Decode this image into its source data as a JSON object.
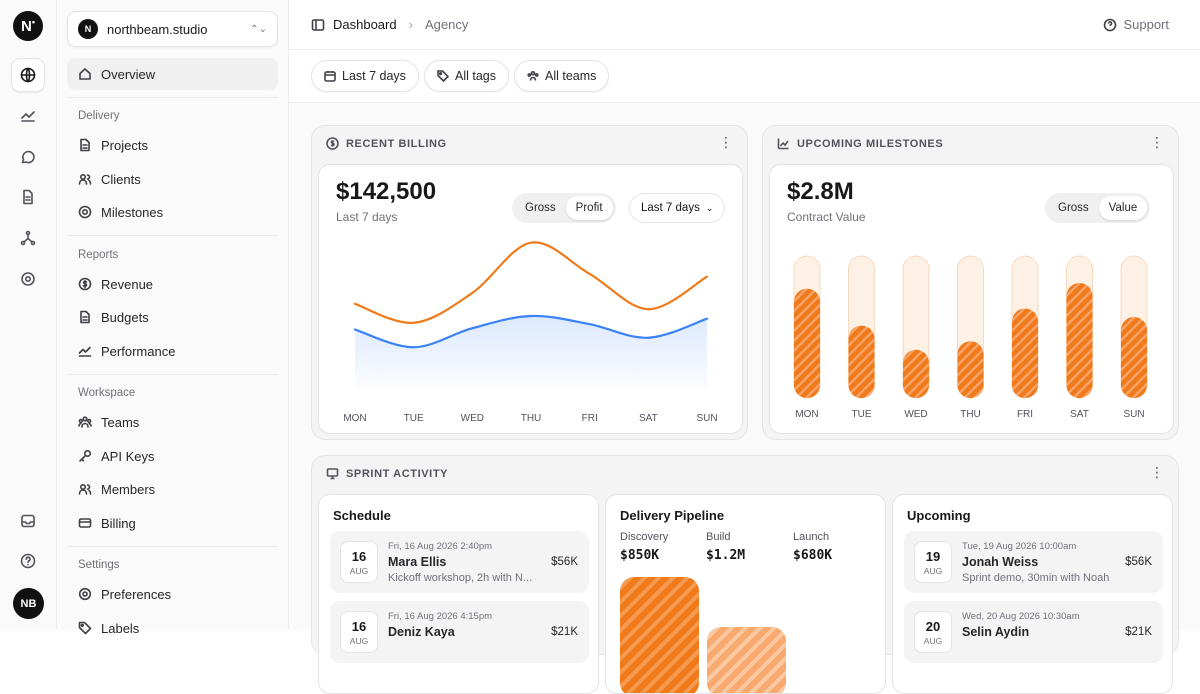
{
  "rail": {
    "logo": "N",
    "icons": [
      "globe-icon",
      "chart-line-icon",
      "chat-icon",
      "document-icon",
      "network-icon",
      "settings-icon"
    ],
    "bottom_icons": [
      "inbox-icon",
      "help-icon"
    ],
    "avatar": "NB"
  },
  "workspace": {
    "badge": "N",
    "name": "northbeam.studio"
  },
  "nav": {
    "overview": "Overview",
    "delivery_title": "Delivery",
    "delivery": [
      "Projects",
      "Clients",
      "Milestones"
    ],
    "reports_title": "Reports",
    "reports": [
      "Revenue",
      "Budgets",
      "Performance"
    ],
    "workspace_title": "Workspace",
    "workspace": [
      "Teams",
      "API Keys",
      "Members",
      "Billing"
    ],
    "settings_title": "Settings",
    "settings": [
      "Preferences",
      "Labels"
    ]
  },
  "header": {
    "crumb1": "Dashboard",
    "crumb2": "Agency",
    "support": "Support"
  },
  "filters": {
    "range": "Last 7 days",
    "tags": "All tags",
    "teams": "All teams"
  },
  "billing": {
    "title": "RECENT BILLING",
    "value": "$142,500",
    "period": "Last 7 days",
    "toggle": [
      "Gross",
      "Profit"
    ],
    "toggle_active": "Profit",
    "dropdown": "Last 7 days"
  },
  "milestones": {
    "title": "UPCOMING MILESTONES",
    "value": "$2.8M",
    "label": "Contract Value",
    "toggle": [
      "Gross",
      "Value"
    ],
    "toggle_active": "Value"
  },
  "chart_data": [
    {
      "type": "line",
      "x": [
        "MON",
        "TUE",
        "WED",
        "THU",
        "FRI",
        "SAT",
        "SUN"
      ],
      "series": [
        {
          "values": [
            62,
            48,
            70,
            107,
            84,
            58,
            82
          ],
          "color": "#f07a1a"
        },
        {
          "values": [
            43,
            30,
            44,
            53,
            47,
            37,
            51
          ],
          "color": "#3b82f6"
        }
      ],
      "ylim": [
        0,
        120
      ]
    },
    {
      "type": "bar",
      "categories": [
        "MON",
        "TUE",
        "WED",
        "THU",
        "FRI",
        "SAT",
        "SUN"
      ],
      "values": [
        77,
        51,
        34,
        40,
        63,
        81,
        57
      ],
      "ylim": [
        0,
        100
      ],
      "color": "#f07a1a"
    }
  ],
  "sprint": {
    "title": "SPRINT ACTIVITY",
    "schedule": {
      "title": "Schedule",
      "events": [
        {
          "day": "16",
          "month": "AUG",
          "when": "Fri, 16 Aug 2026 2:40pm",
          "who": "Mara Ellis",
          "what": "Kickoff workshop, 2h with N...",
          "amount": "$56K"
        },
        {
          "day": "16",
          "month": "AUG",
          "when": "Fri, 16 Aug 2026 4:15pm",
          "who": "Deniz Kaya",
          "what": "",
          "amount": "$21K"
        }
      ]
    },
    "pipeline": {
      "title": "Delivery Pipeline",
      "stages": [
        {
          "label": "Discovery",
          "value": "$850K"
        },
        {
          "label": "Build",
          "value": "$1.2M"
        },
        {
          "label": "Launch",
          "value": "$680K"
        }
      ]
    },
    "upcoming": {
      "title": "Upcoming",
      "events": [
        {
          "day": "19",
          "month": "AUG",
          "when": "Tue, 19 Aug 2026 10:00am",
          "who": "Jonah Weiss",
          "what": "Sprint demo, 30min with Noah",
          "amount": "$56K"
        },
        {
          "day": "20",
          "month": "AUG",
          "when": "Wed, 20 Aug 2026 10:30am",
          "who": "Selin Aydin",
          "what": "",
          "amount": "$21K"
        }
      ]
    }
  }
}
